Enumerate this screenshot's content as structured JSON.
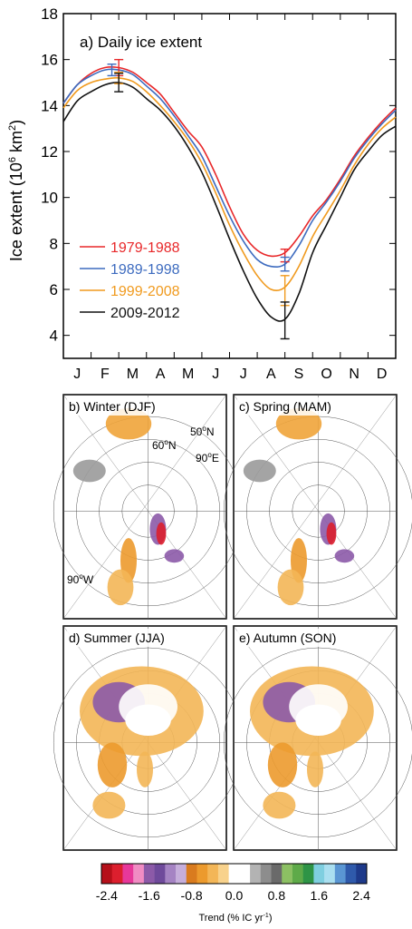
{
  "chart_data": [
    {
      "type": "line",
      "panel_label": "a) Daily ice extent",
      "ylabel_main": "Ice extent (10",
      "ylabel_sup": "6",
      "ylabel_unit": " km",
      "ylabel_sup2": "2",
      "ylabel_close": ")",
      "ylim": [
        3,
        18
      ],
      "yticks": [
        4,
        6,
        8,
        10,
        12,
        14,
        16,
        18
      ],
      "months": [
        "J",
        "F",
        "M",
        "A",
        "M",
        "J",
        "J",
        "A",
        "S",
        "O",
        "N",
        "D"
      ],
      "x_domain": [
        0,
        12
      ],
      "legend_position": "left-center",
      "series": [
        {
          "name": "1979-1988",
          "color": "#e8282a",
          "x": [
            0,
            0.5,
            1,
            1.5,
            2,
            2.5,
            3,
            3.5,
            4,
            4.5,
            5,
            5.5,
            6,
            6.5,
            7,
            7.5,
            8,
            8.5,
            9,
            9.5,
            10,
            10.5,
            11,
            11.5,
            12
          ],
          "y": [
            14.1,
            14.9,
            15.4,
            15.65,
            15.65,
            15.45,
            15.0,
            14.5,
            13.7,
            12.9,
            12.2,
            11.0,
            9.6,
            8.4,
            7.7,
            7.45,
            7.6,
            8.3,
            9.2,
            9.9,
            10.8,
            11.8,
            12.6,
            13.3,
            13.9
          ]
        },
        {
          "name": "1989-1998",
          "color": "#3d6bbf",
          "x": [
            0,
            0.5,
            1,
            1.5,
            2,
            2.5,
            3,
            3.5,
            4,
            4.5,
            5,
            5.5,
            6,
            6.5,
            7,
            7.5,
            8,
            8.5,
            9,
            9.5,
            10,
            10.5,
            11,
            11.5,
            12
          ],
          "y": [
            14.1,
            14.9,
            15.3,
            15.55,
            15.55,
            15.35,
            14.85,
            14.3,
            13.55,
            12.7,
            11.8,
            10.5,
            9.2,
            8.1,
            7.3,
            7.0,
            7.1,
            7.9,
            9.0,
            9.8,
            10.7,
            11.7,
            12.5,
            13.2,
            13.8
          ]
        },
        {
          "name": "1999-2008",
          "color": "#f09a1e",
          "x": [
            0,
            0.5,
            1,
            1.5,
            2,
            2.5,
            3,
            3.5,
            4,
            4.5,
            5,
            5.5,
            6,
            6.5,
            7,
            7.5,
            8,
            8.5,
            9,
            9.5,
            10,
            10.5,
            11,
            11.5,
            12
          ],
          "y": [
            13.9,
            14.65,
            15.0,
            15.15,
            15.2,
            15.05,
            14.6,
            14.0,
            13.3,
            12.5,
            11.5,
            10.2,
            8.8,
            7.6,
            6.6,
            6.0,
            6.1,
            7.0,
            8.3,
            9.3,
            10.3,
            11.4,
            12.3,
            13.0,
            13.5
          ]
        },
        {
          "name": "2009-2012",
          "color": "#111111",
          "x": [
            0,
            0.5,
            1,
            1.5,
            2,
            2.5,
            3,
            3.5,
            4,
            4.5,
            5,
            5.5,
            6,
            6.5,
            7,
            7.5,
            8,
            8.5,
            9,
            9.5,
            10,
            10.5,
            11,
            11.5,
            12
          ],
          "y": [
            13.3,
            14.2,
            14.6,
            14.9,
            15.0,
            14.8,
            14.3,
            13.8,
            13.1,
            12.2,
            11.1,
            9.7,
            8.2,
            6.8,
            5.6,
            4.8,
            4.7,
            5.8,
            7.6,
            8.8,
            10.0,
            11.2,
            12.0,
            12.7,
            13.1
          ]
        }
      ],
      "error_bars": [
        {
          "series": "1979-1988",
          "x": 2.0,
          "y": 15.65,
          "low": 15.3,
          "high": 16.0
        },
        {
          "series": "1989-1998",
          "x": 1.75,
          "y": 15.55,
          "low": 15.3,
          "high": 15.8
        },
        {
          "series": "1999-2008",
          "x": 2.0,
          "y": 15.2,
          "low": 14.95,
          "high": 15.45
        },
        {
          "series": "2009-2012",
          "x": 2.0,
          "y": 15.0,
          "low": 14.6,
          "high": 15.4
        },
        {
          "series": "1979-1988",
          "x": 8.0,
          "y": 7.5,
          "low": 7.2,
          "high": 7.75
        },
        {
          "series": "1989-1998",
          "x": 8.0,
          "y": 7.1,
          "low": 6.8,
          "high": 7.4
        },
        {
          "series": "1999-2008",
          "x": 8.0,
          "y": 6.0,
          "low": 5.3,
          "high": 6.6
        },
        {
          "series": "2009-2012",
          "x": 8.0,
          "y": 4.7,
          "low": 3.85,
          "high": 5.45
        }
      ]
    },
    {
      "type": "heatmap",
      "panels": [
        {
          "label": "b) Winter (DJF)",
          "annotations": [
            "50ᴼN",
            "60ᴼN",
            "90ᴼE",
            "90ᴼW"
          ],
          "ann_base": [
            "50",
            "60",
            "90",
            "90"
          ],
          "ann_sup": [
            "o",
            "o",
            "o",
            "o"
          ],
          "ann_suffix": [
            "N",
            "N",
            "E",
            "W"
          ]
        },
        {
          "label": "c) Spring (MAM)"
        },
        {
          "label": "d) Summer (JJA)"
        },
        {
          "label": "e) Autumn (SON)"
        }
      ],
      "colorbar": {
        "ticks": [
          "-2.4",
          "-1.6",
          "-0.8",
          "0.0",
          "0.8",
          "1.6",
          "2.4"
        ],
        "label": "Trend (% IC yr",
        "label_sup": "-1",
        "label_close": ")",
        "range": [
          -2.4,
          2.4
        ],
        "colors": [
          "#b5101a",
          "#dc1f2e",
          "#e7389a",
          "#f08cc3",
          "#8c5aa8",
          "#6f4a9b",
          "#a583c3",
          "#c6aedb",
          "#d97b1e",
          "#ec9a2d",
          "#f3b657",
          "#f8d28c",
          "#ffffff",
          "#ffffff",
          "#b3b3b3",
          "#8d8d8d",
          "#6a6a6a",
          "#8cc063",
          "#5eaa49",
          "#2e9446",
          "#7fcfe0",
          "#aadff0",
          "#5a96d3",
          "#2f5aab",
          "#1e3a8a"
        ]
      }
    }
  ]
}
